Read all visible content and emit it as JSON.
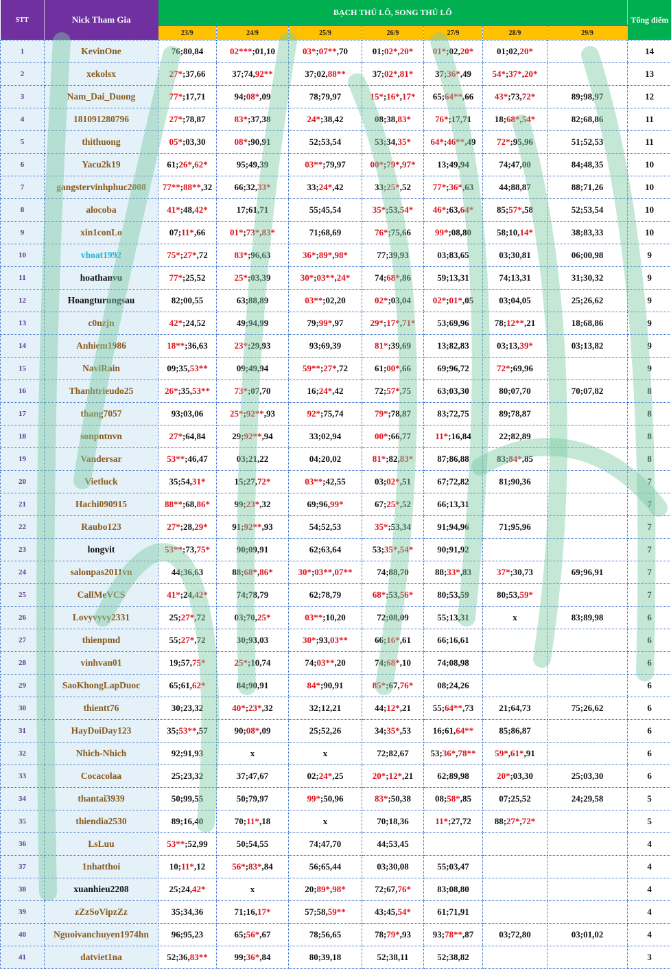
{
  "header": {
    "stt": "STT",
    "nick": "Nick Tham Gia",
    "title": "BẠCH THỦ LÔ, SONG THỦ LÔ",
    "total": "Tổng điểm",
    "dates": [
      "23/9",
      "24/9",
      "25/9",
      "26/9",
      "27/9",
      "28/9",
      "29/9"
    ]
  },
  "colors": {
    "header_purple": "#7030a0",
    "header_green": "#00b050",
    "date_yellow": "#ffc000",
    "name_brown": "#8b5a1c",
    "name_black": "#111111",
    "name_cyan": "#1fb5d6",
    "hit_red": "#e0101a"
  },
  "rows": [
    {
      "stt": "1",
      "nick": "KevinOne",
      "color": "brown",
      "cells": [
        "76;80,84",
        "02***;01,10",
        "03*;07**,70",
        "01;02*,20*",
        "01*;02,20*",
        "01;02,20*",
        ""
      ],
      "total": "14"
    },
    {
      "stt": "2",
      "nick": "xekolsx",
      "color": "brown",
      "cells": [
        "27*;37,66",
        "37;74,92**",
        "37;02,88**",
        "37;02*,81*",
        "37;36*,49",
        "54*;37*,20*",
        ""
      ],
      "total": "13"
    },
    {
      "stt": "3",
      "nick": "Nam_Dai_Duong",
      "color": "brown",
      "cells": [
        "77*;17,71",
        "94;08*,09",
        "78;79,97",
        "15*;16*,17*",
        "65;64**,66",
        "43*;73,72*",
        "89;98,97"
      ],
      "total": "12"
    },
    {
      "stt": "4",
      "nick": "181091280796",
      "color": "brown",
      "cells": [
        "27*;78,87",
        "83*;37,38",
        "24*;38,42",
        "08;38,83*",
        "76*;17,71",
        "18;68*,54*",
        "82;68,86"
      ],
      "total": "11"
    },
    {
      "stt": "5",
      "nick": "thithuong",
      "color": "brown",
      "cells": [
        "05*;03,30",
        "08*;90,91",
        "52;53,54",
        "53;34,35*",
        "64*;46**,49",
        "72*;95,96",
        "51;52,53"
      ],
      "total": "11"
    },
    {
      "stt": "6",
      "nick": "Yacu2k19",
      "color": "brown",
      "cells": [
        "61;26*,62*",
        "95;49,39",
        "03**;79,97",
        "00*;79*,97*",
        "13;49,94",
        "74;47,00",
        "84;48,35"
      ],
      "total": "10"
    },
    {
      "stt": "7",
      "nick": "gangstervinhphuc2008",
      "color": "brown",
      "cells": [
        "77**;88**,32",
        "66;32,33*",
        "33;24*,42",
        "33;25*,52",
        "77*;36*,63",
        "44;88,87",
        "88;71,26"
      ],
      "total": "10"
    },
    {
      "stt": "8",
      "nick": "alocoba",
      "color": "brown",
      "cells": [
        "41*;48,42*",
        "17;61,71",
        "55;45,54",
        "35*;53,54*",
        "46*;63,64*",
        "85;57*,58",
        "52;53,54"
      ],
      "total": "10"
    },
    {
      "stt": "9",
      "nick": "xin1conLo",
      "color": "brown",
      "cells": [
        "07;11*,66",
        "01*;73*,83*",
        "71;68,69",
        "76*;75,66",
        "99*;08,80",
        "58;10,14*",
        "38;83,33"
      ],
      "total": "10"
    },
    {
      "stt": "10",
      "nick": "vhoat1992",
      "color": "cyan",
      "cells": [
        "75*;27*,72",
        "83*;96,63",
        "36*;89*,98*",
        "77;39,93",
        "03;83,65",
        "03;30,81",
        "06;00,98"
      ],
      "total": "9"
    },
    {
      "stt": "11",
      "nick": "hoathanvu",
      "color": "black",
      "cells": [
        "77*;25,52",
        "25*;03,39",
        "30*;03**,24*",
        "74;68*,86",
        "59;13,31",
        "74;13,31",
        "31;30,32"
      ],
      "total": "9"
    },
    {
      "stt": "12",
      "nick": "Hoangturungsau",
      "color": "black",
      "cells": [
        "82;00,55",
        "63;88,89",
        "03**;02,20",
        "02*;03,04",
        "02*;01*,05",
        "03;04,05",
        "25;26,62"
      ],
      "total": "9"
    },
    {
      "stt": "13",
      "nick": "c0nzjn",
      "color": "brown",
      "cells": [
        "42*;24,52",
        "49;94,99",
        "79;99*,97",
        "29*;17*,71*",
        "53;69,96",
        "78;12**,21",
        "18;68,86"
      ],
      "total": "9"
    },
    {
      "stt": "14",
      "nick": "Anhiem1986",
      "color": "brown",
      "cells": [
        "18**;36,63",
        "23*;29,93",
        "93;69,39",
        "81*;39,69",
        "13;82,83",
        "03;13,39*",
        "03;13,82"
      ],
      "total": "9"
    },
    {
      "stt": "15",
      "nick": "NaviRain",
      "color": "brown",
      "cells": [
        "09;35,53**",
        "09;49,94",
        "59**;27*,72",
        "61;00*,66",
        "69;96,72",
        "72*;69,96",
        ""
      ],
      "total": "9"
    },
    {
      "stt": "16",
      "nick": "Thanhtrieudo25",
      "color": "brown",
      "cells": [
        "26*;35,53**",
        "73*;07,70",
        "16;24*,42",
        "72;57*,75",
        "63;03,30",
        "80;07,70",
        "70;07,82"
      ],
      "total": "8"
    },
    {
      "stt": "17",
      "nick": "thang7057",
      "color": "brown",
      "cells": [
        "93;03,06",
        "25*;92**,93",
        "92*;75,74",
        "79*;78,87",
        "83;72,75",
        "89;78,87",
        ""
      ],
      "total": "8"
    },
    {
      "stt": "18",
      "nick": "sonpntnvn",
      "color": "brown",
      "cells": [
        "27*;64,84",
        "29;92**,94",
        "33;02,94",
        "00*;66,77",
        "11*;16,84",
        "22;82,89",
        ""
      ],
      "total": "8"
    },
    {
      "stt": "19",
      "nick": "Vandersar",
      "color": "brown",
      "cells": [
        "53**;46,47",
        "03;21,22",
        "04;20,02",
        "81*;82,83*",
        "87;86,88",
        "83;84*,85",
        ""
      ],
      "total": "8"
    },
    {
      "stt": "20",
      "nick": "Vietluck",
      "color": "brown",
      "cells": [
        "35;54,31*",
        "15;27,72*",
        "03**;42,55",
        "03;02*,51",
        "67;72,82",
        "81;90,36",
        ""
      ],
      "total": "7"
    },
    {
      "stt": "21",
      "nick": "Hachi090915",
      "color": "brown",
      "cells": [
        "88**;68,86*",
        "99;23*,32",
        "69;96,99*",
        "67;25*,52",
        "66;13,31",
        "",
        ""
      ],
      "total": "7"
    },
    {
      "stt": "22",
      "nick": "Raubo123",
      "color": "brown",
      "cells": [
        "27*;28,29*",
        "91;92**,93",
        "54;52,53",
        "35*;53,34",
        "91;94,96",
        "71;95,96",
        ""
      ],
      "total": "7"
    },
    {
      "stt": "23",
      "nick": "longvit",
      "color": "black",
      "cells": [
        "53**;73,75*",
        "90;09,91",
        "62;63,64",
        "53;35*,54*",
        "90;91,92",
        "",
        ""
      ],
      "total": "7"
    },
    {
      "stt": "24",
      "nick": "salonpas2011vn",
      "color": "brown",
      "cells": [
        "44;36,63",
        "88;68*,86*",
        "30*;03**,07**",
        "74;88,70",
        "88;33*,83",
        "37*;30,73",
        "69;96,91"
      ],
      "total": "7"
    },
    {
      "stt": "25",
      "nick": "CallMeVCS",
      "color": "brown",
      "cells": [
        "41*;24,42*",
        "74;78,79",
        "62;78,79",
        "68*;53,56*",
        "80;53,59",
        "80;53,59*",
        ""
      ],
      "total": "7"
    },
    {
      "stt": "26",
      "nick": "Lovyvyvy2331",
      "color": "brown",
      "cells": [
        "25;27*,72",
        "03;70,25*",
        "03**;10,20",
        "72;08,09",
        "55;13,31",
        "x",
        "83;89,98"
      ],
      "total": "6"
    },
    {
      "stt": "27",
      "nick": "thienpmd",
      "color": "brown",
      "cells": [
        "55;27*,72",
        "30;93,03",
        "30*;93,03**",
        "66;16*,61",
        "66;16,61",
        "",
        ""
      ],
      "total": "6"
    },
    {
      "stt": "28",
      "nick": "vinhvan01",
      "color": "brown",
      "cells": [
        "19;57,75*",
        "25*;10,74",
        "74;03**,20",
        "74;68*,10",
        "74;08,98",
        "",
        ""
      ],
      "total": "6"
    },
    {
      "stt": "29",
      "nick": "SaoKhongLapDuoc",
      "color": "brown",
      "cells": [
        "65;61,62*",
        "84;90,91",
        "84*;90,91",
        "85*;67,76*",
        "08;24,26",
        "",
        ""
      ],
      "total": "6"
    },
    {
      "stt": "30",
      "nick": "thientt76",
      "color": "brown",
      "cells": [
        "30;23,32",
        "40*;23*,32",
        "32;12,21",
        "44;12*,21",
        "55;64**,73",
        "21;64,73",
        "75;26,62"
      ],
      "total": "6"
    },
    {
      "stt": "31",
      "nick": "HayDoiDay123",
      "color": "brown",
      "cells": [
        "35;53**,57",
        "90;08*,09",
        "25;52,26",
        "34;35*,53",
        "16;61,64**",
        "85;86,87",
        ""
      ],
      "total": "6"
    },
    {
      "stt": "32",
      "nick": "Nhich-Nhich",
      "color": "brown",
      "cells": [
        "92;91,93",
        "x",
        "x",
        "72;82,67",
        "53;36*,78**",
        "59*,61*,91",
        ""
      ],
      "total": "6"
    },
    {
      "stt": "33",
      "nick": "Cocacolaa",
      "color": "brown",
      "cells": [
        "25;23,32",
        "37;47,67",
        "02;24*,25",
        "20*;12*,21",
        "62;89,98",
        "20*;03,30",
        "25;03,30"
      ],
      "total": "6"
    },
    {
      "stt": "34",
      "nick": "thantai3939",
      "color": "brown",
      "cells": [
        "50;99,55",
        "50;79,97",
        "99*;50,96",
        "83*;50,38",
        "08;58*,85",
        "07;25,52",
        "24;29,58"
      ],
      "total": "5"
    },
    {
      "stt": "35",
      "nick": "thiendia2530",
      "color": "brown",
      "cells": [
        "89;16,40",
        "70;11*,18",
        "x",
        "70;18,36",
        "11*;27,72",
        "88;27*,72*",
        ""
      ],
      "total": "5"
    },
    {
      "stt": "36",
      "nick": "LsLuu",
      "color": "brown",
      "cells": [
        "53**;52,99",
        "50;54,55",
        "74;47,70",
        "44;53,45",
        "",
        "",
        ""
      ],
      "total": "4"
    },
    {
      "stt": "37",
      "nick": "1nhatthoi",
      "color": "brown",
      "cells": [
        "10;11*,12",
        "56*;83*,84",
        "56;65,44",
        "03;30,08",
        "55;03,47",
        "",
        ""
      ],
      "total": "4"
    },
    {
      "stt": "38",
      "nick": "xuanhieu2208",
      "color": "black",
      "cells": [
        "25;24,42*",
        "x",
        "20;89*,98*",
        "72;67,76*",
        "83;08,80",
        "",
        ""
      ],
      "total": "4"
    },
    {
      "stt": "39",
      "nick": "zZzSoVipzZz",
      "color": "brown",
      "cells": [
        "35;34,36",
        "71;16,17*",
        "57;58,59**",
        "43;45,54*",
        "61;71,91",
        "",
        ""
      ],
      "total": "4"
    },
    {
      "stt": "40",
      "nick": "Nguoivanchuyen1974hn",
      "color": "brown",
      "cells": [
        "96;95,23",
        "65;56*,67",
        "78;56,65",
        "78;79*,93",
        "93;78**,87",
        "03;72,80",
        "03;01,02"
      ],
      "total": "4"
    },
    {
      "stt": "41",
      "nick": "datviet1na",
      "color": "brown",
      "cells": [
        "52;36,83**",
        "99;36*,84",
        "80;39,18",
        "52;38,11",
        "52;38,82",
        "",
        ""
      ],
      "total": "3"
    }
  ]
}
